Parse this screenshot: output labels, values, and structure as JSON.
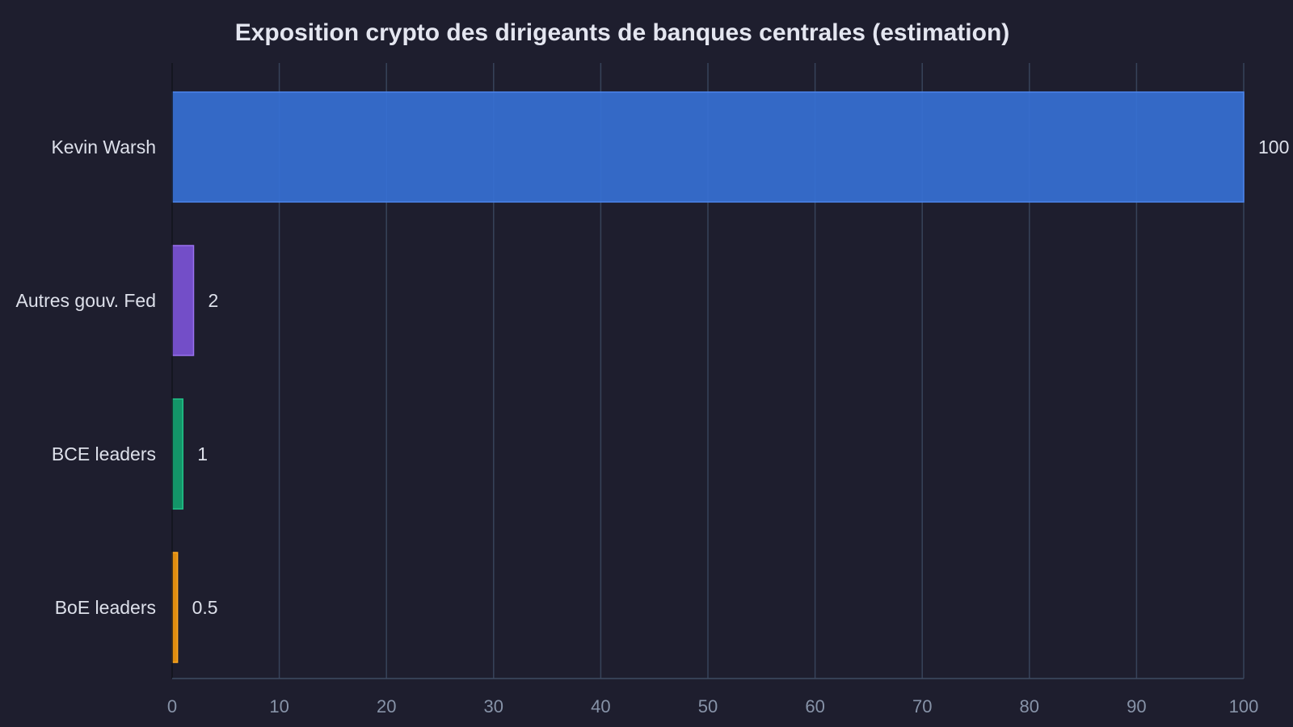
{
  "chart_data": {
    "type": "bar",
    "orientation": "horizontal",
    "title": "Exposition crypto des dirigeants de banques centrales (estimation)",
    "xlabel": "",
    "ylabel": "",
    "categories": [
      "Kevin Warsh",
      "Autres gouv. Fed",
      "BCE leaders",
      "BoE leaders"
    ],
    "values": [
      100,
      2,
      1,
      0.5
    ],
    "value_labels": [
      "100",
      "2",
      "1",
      "0.5"
    ],
    "colors": [
      "#3670d4",
      "#7b52d6",
      "#12a06e",
      "#f0960e"
    ],
    "border_colors": [
      "#4c86ee",
      "#9a72f0",
      "#22c389",
      "#ffaa22"
    ],
    "xlim": [
      0,
      100
    ],
    "xticks": [
      0,
      10,
      20,
      30,
      40,
      50,
      60,
      70,
      80,
      90,
      100
    ],
    "xtick_labels": [
      "0",
      "10",
      "20",
      "30",
      "40",
      "50",
      "60",
      "70",
      "80",
      "90",
      "100"
    ],
    "grid": "vertical",
    "legend": "none"
  }
}
